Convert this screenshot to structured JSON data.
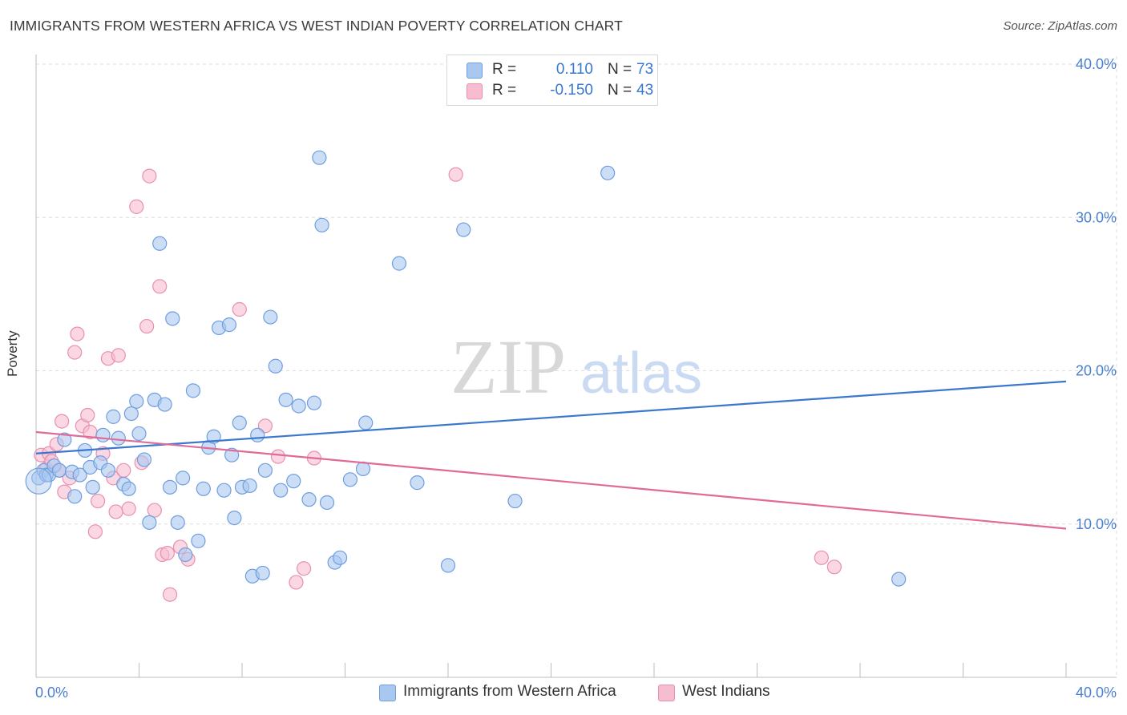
{
  "header": {
    "title": "IMMIGRANTS FROM WESTERN AFRICA VS WEST INDIAN POVERTY CORRELATION CHART",
    "source": "Source: ZipAtlas.com"
  },
  "watermark": {
    "zip": "ZIP",
    "atlas": "atlas"
  },
  "colors": {
    "blue_fill": "#a9c8f0",
    "blue_stroke": "#6f9ee0",
    "blue_line": "#3a78d0",
    "pink_fill": "#f6bcd0",
    "pink_stroke": "#e890b0",
    "pink_line": "#e06a98",
    "axis_text": "#4a7fd0",
    "grid": "#dcdcdc"
  },
  "legend": {
    "rows": [
      {
        "r_label": "R =",
        "r_value": "0.110",
        "n_label": "N =",
        "n_value": "73",
        "color": "blue"
      },
      {
        "r_label": "R =",
        "r_value": "-0.150",
        "n_label": "N =",
        "n_value": "43",
        "color": "pink"
      }
    ]
  },
  "bottom_legend": {
    "series1": "Immigrants from Western Africa",
    "series2": "West Indians"
  },
  "chart_data": {
    "type": "scatter",
    "title": "IMMIGRANTS FROM WESTERN AFRICA VS WEST INDIAN POVERTY CORRELATION CHART",
    "xlabel": "",
    "ylabel": "Poverty",
    "xlim": [
      0,
      40
    ],
    "ylim": [
      0,
      40
    ],
    "x_tick_labels": [
      "0.0%",
      "40.0%"
    ],
    "y_tick_labels": [
      "10.0%",
      "20.0%",
      "30.0%",
      "40.0%"
    ],
    "y_ticks": [
      10,
      20,
      30,
      40
    ],
    "series": [
      {
        "name": "Immigrants from Western Africa",
        "color": "blue",
        "trend": {
          "x": [
            0,
            40
          ],
          "y": [
            14.6,
            19.3
          ]
        },
        "points": [
          [
            0.1,
            13.0
          ],
          [
            0.3,
            13.5
          ],
          [
            0.4,
            13.2
          ],
          [
            0.5,
            13.2
          ],
          [
            0.7,
            13.8
          ],
          [
            0.9,
            13.5
          ],
          [
            1.1,
            15.5
          ],
          [
            1.4,
            13.4
          ],
          [
            1.5,
            11.8
          ],
          [
            1.7,
            13.2
          ],
          [
            1.9,
            14.8
          ],
          [
            2.1,
            13.7
          ],
          [
            2.2,
            12.4
          ],
          [
            2.5,
            14.0
          ],
          [
            2.6,
            15.8
          ],
          [
            2.8,
            13.5
          ],
          [
            3.0,
            17.0
          ],
          [
            3.2,
            15.6
          ],
          [
            3.4,
            12.6
          ],
          [
            3.6,
            12.3
          ],
          [
            3.7,
            17.2
          ],
          [
            3.9,
            18.0
          ],
          [
            4.0,
            15.9
          ],
          [
            4.2,
            14.2
          ],
          [
            4.4,
            10.1
          ],
          [
            4.6,
            18.1
          ],
          [
            4.8,
            28.3
          ],
          [
            5.0,
            17.8
          ],
          [
            5.2,
            12.4
          ],
          [
            5.3,
            23.4
          ],
          [
            5.5,
            10.1
          ],
          [
            5.7,
            13.0
          ],
          [
            5.8,
            8.0
          ],
          [
            6.1,
            18.7
          ],
          [
            6.3,
            8.9
          ],
          [
            6.5,
            12.3
          ],
          [
            6.7,
            15.0
          ],
          [
            6.9,
            15.7
          ],
          [
            7.1,
            22.8
          ],
          [
            7.3,
            12.2
          ],
          [
            7.5,
            23.0
          ],
          [
            7.6,
            14.5
          ],
          [
            7.7,
            10.4
          ],
          [
            7.9,
            16.6
          ],
          [
            8.0,
            12.4
          ],
          [
            8.3,
            12.5
          ],
          [
            8.4,
            6.6
          ],
          [
            8.6,
            15.8
          ],
          [
            8.8,
            6.8
          ],
          [
            8.9,
            13.5
          ],
          [
            9.1,
            23.5
          ],
          [
            9.3,
            20.3
          ],
          [
            9.5,
            12.2
          ],
          [
            9.7,
            18.1
          ],
          [
            10.0,
            12.8
          ],
          [
            10.2,
            17.7
          ],
          [
            10.6,
            11.6
          ],
          [
            10.8,
            17.9
          ],
          [
            11.0,
            33.9
          ],
          [
            11.1,
            29.5
          ],
          [
            11.3,
            11.4
          ],
          [
            11.6,
            7.5
          ],
          [
            11.8,
            7.8
          ],
          [
            12.2,
            12.9
          ],
          [
            12.7,
            13.6
          ],
          [
            12.8,
            16.6
          ],
          [
            14.1,
            27.0
          ],
          [
            14.8,
            12.7
          ],
          [
            16.0,
            7.3
          ],
          [
            16.6,
            29.2
          ],
          [
            18.6,
            11.5
          ],
          [
            22.2,
            32.9
          ],
          [
            33.5,
            6.4
          ]
        ]
      },
      {
        "name": "West Indians",
        "color": "pink",
        "trend": {
          "x": [
            0,
            40
          ],
          "y": [
            16.0,
            9.7
          ]
        },
        "points": [
          [
            0.2,
            14.5
          ],
          [
            0.4,
            13.6
          ],
          [
            0.5,
            14.6
          ],
          [
            0.6,
            14.1
          ],
          [
            0.8,
            15.2
          ],
          [
            0.9,
            13.5
          ],
          [
            1.0,
            16.7
          ],
          [
            1.1,
            12.1
          ],
          [
            1.3,
            13.0
          ],
          [
            1.5,
            21.2
          ],
          [
            1.6,
            22.4
          ],
          [
            1.8,
            16.4
          ],
          [
            2.0,
            17.1
          ],
          [
            2.1,
            16.0
          ],
          [
            2.3,
            9.5
          ],
          [
            2.4,
            11.5
          ],
          [
            2.6,
            14.6
          ],
          [
            2.8,
            20.8
          ],
          [
            3.0,
            13.0
          ],
          [
            3.1,
            10.8
          ],
          [
            3.2,
            21.0
          ],
          [
            3.4,
            13.5
          ],
          [
            3.6,
            11.0
          ],
          [
            3.9,
            30.7
          ],
          [
            4.1,
            14.0
          ],
          [
            4.3,
            22.9
          ],
          [
            4.4,
            32.7
          ],
          [
            4.6,
            10.9
          ],
          [
            4.8,
            25.5
          ],
          [
            4.9,
            8.0
          ],
          [
            5.1,
            8.1
          ],
          [
            5.2,
            5.4
          ],
          [
            5.6,
            8.5
          ],
          [
            5.9,
            7.7
          ],
          [
            7.9,
            24.0
          ],
          [
            8.9,
            16.4
          ],
          [
            9.4,
            14.4
          ],
          [
            10.1,
            6.2
          ],
          [
            10.4,
            7.1
          ],
          [
            10.8,
            14.3
          ],
          [
            16.3,
            32.8
          ],
          [
            30.5,
            7.8
          ],
          [
            31.0,
            7.2
          ]
        ]
      }
    ]
  }
}
